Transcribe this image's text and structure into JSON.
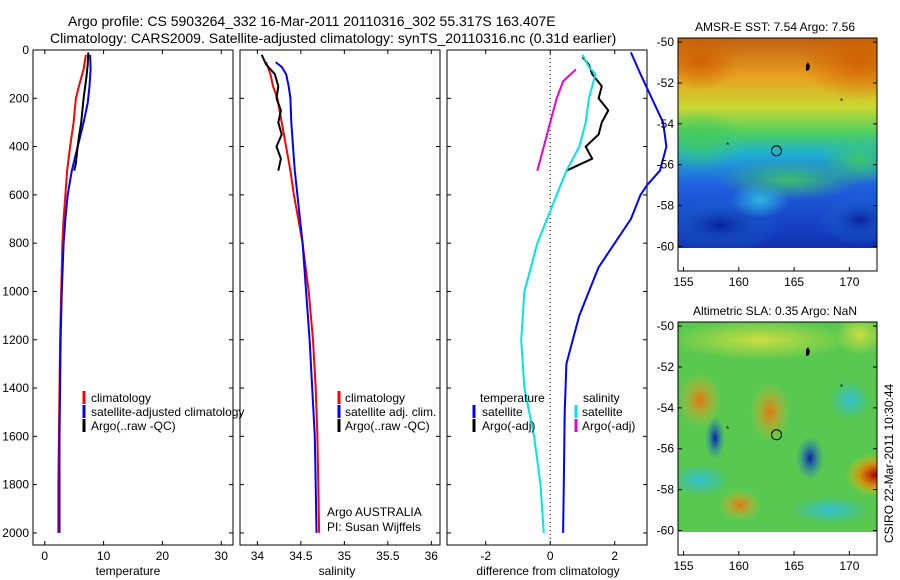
{
  "header": {
    "line1": "Argo profile: CS 5903264_332 16-Mar-2011 20110316_302 55.317S 163.407E",
    "line2": "Climatology: CARS2009. Satellite-adjusted climatology: synTS_20110316.nc (0.31d earlier)"
  },
  "colors": {
    "climatology": "#ff0000",
    "satellite": "#0000ff",
    "argo": "#000000",
    "sat_diff": "#00e5e5",
    "argo_sal_diff": "#e600e6"
  },
  "chart_data": [
    {
      "type": "line",
      "xlabel": "temperature",
      "ylim": [
        2050,
        0
      ],
      "xlim": [
        -2,
        32
      ],
      "xticks": [
        0,
        10,
        20,
        30
      ],
      "yticks": [
        0,
        200,
        400,
        600,
        800,
        1000,
        1200,
        1400,
        1600,
        1800,
        2000
      ],
      "legend": [
        "climatology",
        "satellite-adjusted climatology",
        "Argo(..raw -QC)"
      ],
      "series": [
        {
          "name": "climatology",
          "color": "#ff0000",
          "points": [
            [
              7.0,
              20
            ],
            [
              6.6,
              80
            ],
            [
              5.8,
              150
            ],
            [
              5.3,
              200
            ],
            [
              4.9,
              300
            ],
            [
              4.3,
              400
            ],
            [
              3.8,
              500
            ],
            [
              3.5,
              600
            ],
            [
              3.2,
              700
            ],
            [
              3.0,
              800
            ],
            [
              2.8,
              1000
            ],
            [
              2.6,
              1200
            ],
            [
              2.5,
              1400
            ],
            [
              2.4,
              1600
            ],
            [
              2.3,
              1800
            ],
            [
              2.3,
              2000
            ]
          ]
        },
        {
          "name": "satellite-adjusted climatology",
          "color": "#0000ff",
          "points": [
            [
              7.7,
              20
            ],
            [
              7.8,
              80
            ],
            [
              7.6,
              150
            ],
            [
              7.3,
              220
            ],
            [
              6.6,
              300
            ],
            [
              5.6,
              400
            ],
            [
              4.6,
              500
            ],
            [
              3.9,
              600
            ],
            [
              3.5,
              700
            ],
            [
              3.2,
              800
            ],
            [
              2.9,
              1000
            ],
            [
              2.7,
              1200
            ],
            [
              2.6,
              1400
            ],
            [
              2.5,
              1600
            ],
            [
              2.5,
              1800
            ],
            [
              2.5,
              2000
            ]
          ]
        },
        {
          "name": "Argo(..raw -QC)",
          "color": "#000000",
          "points": [
            [
              7.4,
              10
            ],
            [
              7.3,
              60
            ],
            [
              7.1,
              110
            ],
            [
              6.6,
              200
            ],
            [
              6.2,
              300
            ],
            [
              5.8,
              360
            ],
            [
              5.5,
              420
            ],
            [
              5.3,
              470
            ],
            [
              5.0,
              500
            ]
          ]
        }
      ]
    },
    {
      "type": "line",
      "xlabel": "salinity",
      "ylim": [
        2050,
        0
      ],
      "xlim": [
        33.8,
        36.1
      ],
      "xticks": [
        34,
        34.5,
        35,
        35.5,
        36
      ],
      "legend": [
        "climatology",
        "satellite adj. clim.",
        "Argo(..raw -QC)"
      ],
      "annotations": [
        "Argo AUSTRALIA",
        "PI: Susan Wijffels"
      ],
      "series": [
        {
          "name": "climatology",
          "color": "#ff0000",
          "points": [
            [
              34.1,
              50
            ],
            [
              34.15,
              100
            ],
            [
              34.18,
              150
            ],
            [
              34.23,
              200
            ],
            [
              34.28,
              300
            ],
            [
              34.33,
              400
            ],
            [
              34.38,
              500
            ],
            [
              34.42,
              600
            ],
            [
              34.47,
              700
            ],
            [
              34.52,
              800
            ],
            [
              34.59,
              1000
            ],
            [
              34.64,
              1200
            ],
            [
              34.67,
              1400
            ],
            [
              34.69,
              1600
            ],
            [
              34.7,
              1800
            ],
            [
              34.71,
              2000
            ]
          ]
        },
        {
          "name": "satellite adj. clim.",
          "color": "#0000ff",
          "points": [
            [
              34.21,
              50
            ],
            [
              34.28,
              70
            ],
            [
              34.33,
              100
            ],
            [
              34.36,
              150
            ],
            [
              34.38,
              200
            ],
            [
              34.39,
              300
            ],
            [
              34.41,
              400
            ],
            [
              34.43,
              500
            ],
            [
              34.46,
              600
            ],
            [
              34.49,
              700
            ],
            [
              34.52,
              800
            ],
            [
              34.56,
              1000
            ],
            [
              34.6,
              1200
            ],
            [
              34.63,
              1400
            ],
            [
              34.66,
              1600
            ],
            [
              34.67,
              1800
            ],
            [
              34.68,
              2000
            ]
          ]
        },
        {
          "name": "Argo(..raw -QC)",
          "color": "#000000",
          "points": [
            [
              34.05,
              20
            ],
            [
              34.1,
              60
            ],
            [
              34.2,
              100
            ],
            [
              34.24,
              150
            ],
            [
              34.22,
              200
            ],
            [
              34.27,
              250
            ],
            [
              34.24,
              300
            ],
            [
              34.28,
              350
            ],
            [
              34.22,
              400
            ],
            [
              34.27,
              450
            ],
            [
              34.24,
              500
            ]
          ]
        }
      ]
    },
    {
      "type": "line",
      "xlabel": "difference from climatology",
      "ylim": [
        2050,
        0
      ],
      "xlim": [
        -3.2,
        3.0
      ],
      "xticks": [
        -2,
        0,
        2
      ],
      "legend": [
        "temperature",
        "satellite",
        "Argo(-adj)",
        "salinity",
        "satellite",
        "Argo(-adj)"
      ],
      "series": [
        {
          "name": "satellite",
          "group": "temperature",
          "color": "#0000ff",
          "points": [
            [
              2.5,
              10
            ],
            [
              2.8,
              100
            ],
            [
              3.5,
              300
            ],
            [
              3.6,
              400
            ],
            [
              3.4,
              500
            ],
            [
              3.0,
              560
            ],
            [
              2.8,
              600
            ],
            [
              2.5,
              700
            ],
            [
              2.0,
              800
            ],
            [
              1.5,
              900
            ],
            [
              1.2,
              1000
            ],
            [
              0.9,
              1100
            ],
            [
              0.7,
              1200
            ],
            [
              0.5,
              1300
            ],
            [
              0.45,
              1500
            ],
            [
              0.42,
              1800
            ],
            [
              0.4,
              2000
            ]
          ]
        },
        {
          "name": "Argo(-adj)",
          "group": "temperature",
          "color": "#000000",
          "points": [
            [
              1.0,
              30
            ],
            [
              1.2,
              60
            ],
            [
              1.3,
              100
            ],
            [
              1.6,
              150
            ],
            [
              1.5,
              200
            ],
            [
              1.8,
              250
            ],
            [
              1.6,
              300
            ],
            [
              1.5,
              350
            ],
            [
              1.1,
              400
            ],
            [
              1.3,
              450
            ],
            [
              0.5,
              500
            ]
          ]
        },
        {
          "name": "satellite",
          "group": "salinity",
          "color": "#00e5e5",
          "points": [
            [
              1.0,
              20
            ],
            [
              1.2,
              70
            ],
            [
              1.4,
              100
            ],
            [
              1.3,
              150
            ],
            [
              1.2,
              200
            ],
            [
              1.1,
              300
            ],
            [
              0.9,
              400
            ],
            [
              0.5,
              500
            ],
            [
              0.2,
              600
            ],
            [
              -0.1,
              700
            ],
            [
              -0.4,
              800
            ],
            [
              -0.8,
              1000
            ],
            [
              -0.9,
              1200
            ],
            [
              -0.8,
              1400
            ],
            [
              -0.5,
              1600
            ],
            [
              -0.3,
              1800
            ],
            [
              -0.2,
              2000
            ]
          ]
        },
        {
          "name": "Argo(-adj)",
          "group": "salinity",
          "color": "#e600e6",
          "points": [
            [
              0.8,
              80
            ],
            [
              0.4,
              130
            ],
            [
              0.2,
              200
            ],
            [
              0.0,
              300
            ],
            [
              -0.2,
              400
            ],
            [
              -0.4,
              500
            ]
          ]
        }
      ]
    },
    {
      "type": "heatmap",
      "title": "AMSR-E SST: 7.54  Argo: 7.56",
      "xlim": [
        154.5,
        172.5
      ],
      "ylim": [
        -61.2,
        -49.8
      ],
      "xticks": [
        155,
        160,
        165,
        170
      ],
      "yticks": [
        -50,
        -52,
        -54,
        -56,
        -58,
        -60
      ],
      "marker": {
        "lon": 163.407,
        "lat": -55.317
      }
    },
    {
      "type": "heatmap",
      "title": "Altimetric SLA: 0.35  Argo: NaN",
      "xlim": [
        154.5,
        172.5
      ],
      "ylim": [
        -61.2,
        -49.8
      ],
      "xticks": [
        155,
        160,
        165,
        170
      ],
      "yticks": [
        -50,
        -52,
        -54,
        -56,
        -58,
        -60
      ],
      "marker": {
        "lon": 163.407,
        "lat": -55.317
      }
    }
  ],
  "footer_stamp": "CSIRO 22-Mar-2011 10:30:44"
}
